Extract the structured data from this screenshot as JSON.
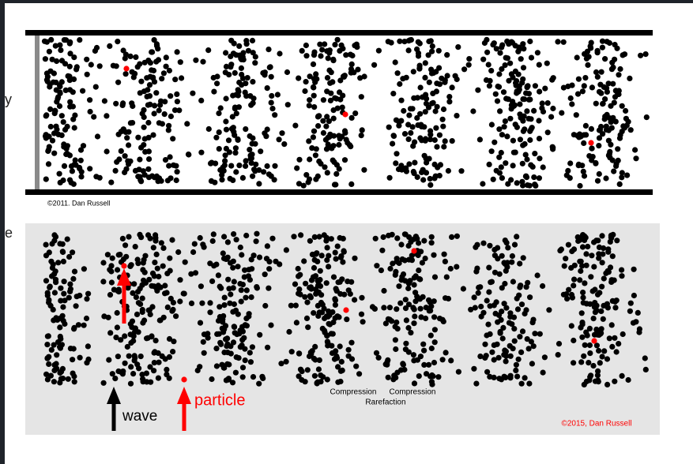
{
  "side_text": {
    "upper": "y",
    "lower": "e"
  },
  "panel_1": {
    "credit": "©2011. Dan Russell"
  },
  "panel_2": {
    "wave_label": "wave",
    "particle_label": "particle",
    "compression_left": "Compression",
    "compression_right": "Compression",
    "rarefaction": "Rarefaction",
    "credit": "©2015, Dan Russell"
  }
}
